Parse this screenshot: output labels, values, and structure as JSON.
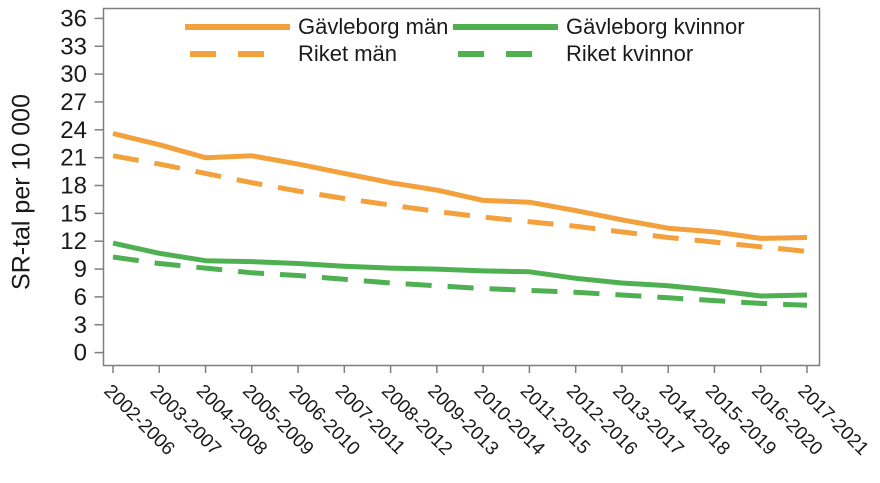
{
  "chart_data": {
    "type": "line",
    "title": "",
    "xlabel": "",
    "ylabel": "SR-tal per 10 000",
    "ylim": [
      0,
      36
    ],
    "ytick_step": 3,
    "grid": false,
    "legend_position": "top",
    "axis_color": "#7f7f7f",
    "text_color": "#1a1a1a",
    "categories": [
      "2002-2006",
      "2003-2007",
      "2004-2008",
      "2005-2009",
      "2006-2010",
      "2007-2011",
      "2008-2012",
      "2009-2013",
      "2010-2014",
      "2011-2015",
      "2012-2016",
      "2013-2017",
      "2014-2018",
      "2015-2019",
      "2016-2020",
      "2017-2021"
    ],
    "series": [
      {
        "id": "gavleborg-man",
        "name": "Gävleborg män",
        "color": "#F2A13C",
        "dash": false,
        "values": [
          23.6,
          22.4,
          21.0,
          21.2,
          20.3,
          19.3,
          18.3,
          17.5,
          16.4,
          16.2,
          15.3,
          14.3,
          13.4,
          13.0,
          12.3,
          12.4
        ]
      },
      {
        "id": "riket-man",
        "name": "Riket män",
        "color": "#F2A13C",
        "dash": true,
        "values": [
          21.2,
          20.3,
          19.3,
          18.3,
          17.4,
          16.6,
          15.9,
          15.2,
          14.6,
          14.1,
          13.6,
          13.0,
          12.4,
          11.9,
          11.4,
          10.9
        ]
      },
      {
        "id": "gavleborg-kvinnor",
        "name": "Gävleborg kvinnor",
        "color": "#4FB052",
        "dash": false,
        "values": [
          11.8,
          10.7,
          9.9,
          9.8,
          9.6,
          9.3,
          9.1,
          9.0,
          8.8,
          8.7,
          8.0,
          7.5,
          7.2,
          6.7,
          6.1,
          6.2
        ]
      },
      {
        "id": "riket-kvinnor",
        "name": "Riket kvinnor",
        "color": "#4FB052",
        "dash": true,
        "values": [
          10.3,
          9.6,
          9.1,
          8.6,
          8.3,
          7.9,
          7.5,
          7.2,
          6.9,
          6.7,
          6.5,
          6.2,
          5.9,
          5.6,
          5.3,
          5.1
        ]
      }
    ]
  }
}
